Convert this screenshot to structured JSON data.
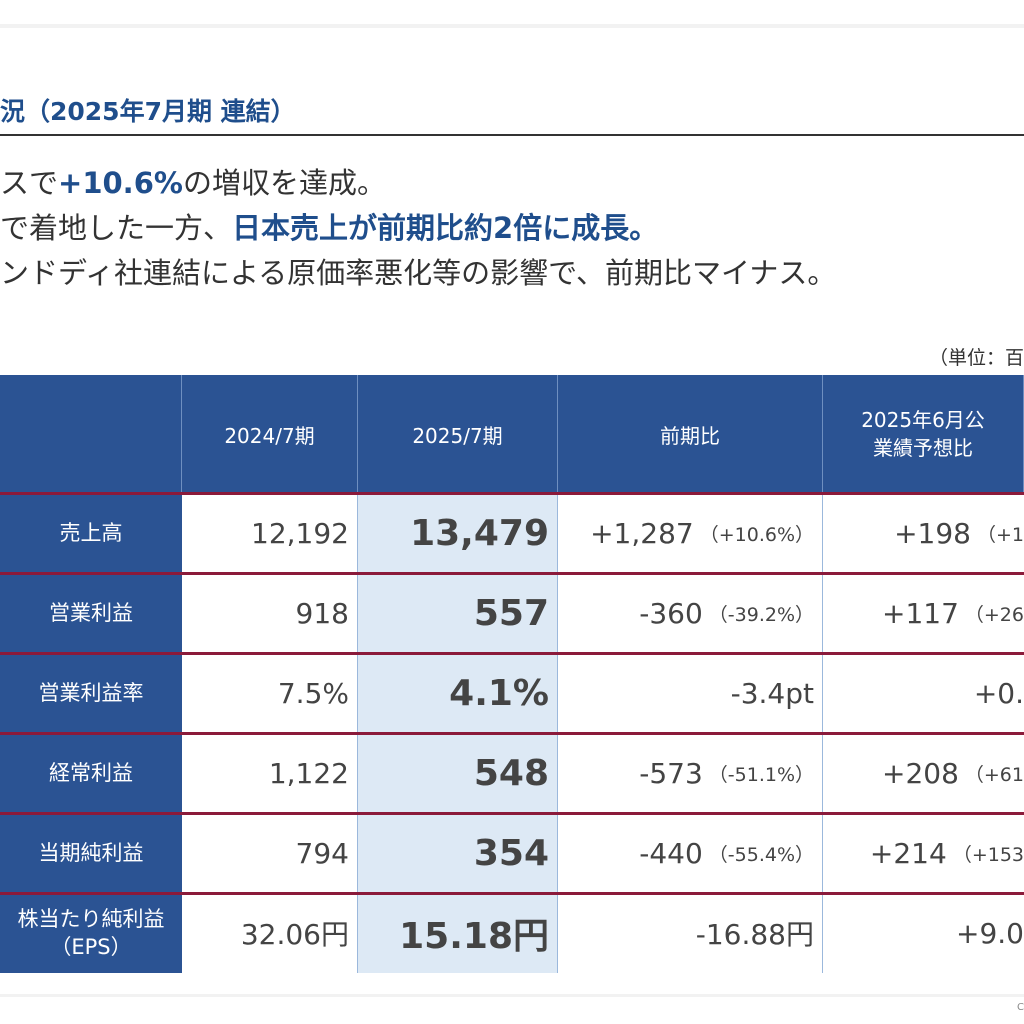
{
  "header": {
    "title": "況（2025年7月期 連結）"
  },
  "bullets": [
    [
      {
        "text": "スで"
      },
      {
        "text": "+10.6%",
        "em": true
      },
      {
        "text": "の増収を達成。"
      }
    ],
    [
      {
        "text": "で着地した一方、"
      },
      {
        "text": "日本売上が前期比約2倍に成長。",
        "em": true
      }
    ],
    [
      {
        "text": "ンドディ社連結による原価率悪化等の影響で、前期比マイナス。"
      }
    ]
  ],
  "unit": "（単位：百",
  "table": {
    "columns": [
      "2024/7期",
      "2025/7期",
      "前期比",
      [
        "2025年6月公",
        "業績予想比"
      ]
    ],
    "rows": [
      {
        "label": [
          "売上高"
        ],
        "prev": "12,192",
        "cur": "13,479",
        "yoy": "+1,287",
        "yoy_pct": "（+10.6%）",
        "fcst": "+198",
        "fcst_pct": "（+1"
      },
      {
        "label": [
          "営業利益"
        ],
        "prev": "918",
        "cur": "557",
        "yoy": "-360",
        "yoy_pct": "（-39.2%）",
        "fcst": "+117",
        "fcst_pct": "（+26"
      },
      {
        "label": [
          "営業利益率"
        ],
        "prev": "7.5%",
        "cur": "4.1%",
        "yoy": "-3.4pt",
        "fcst": "+0."
      },
      {
        "label": [
          "経常利益"
        ],
        "prev": "1,122",
        "cur": "548",
        "yoy": "-573",
        "yoy_pct": "（-51.1%）",
        "fcst": "+208",
        "fcst_pct": "（+61"
      },
      {
        "label": [
          "当期純利益"
        ],
        "prev": "794",
        "cur": "354",
        "yoy": "-440",
        "yoy_pct": "（-55.4%）",
        "fcst": "+214",
        "fcst_pct": "（+153"
      },
      {
        "label": [
          "株当たり純利益",
          "（EPS）"
        ],
        "prev": "32.06円",
        "cur": "15.18円",
        "yoy": "-16.88円",
        "fcst": "+9.0"
      }
    ]
  },
  "footer": "C"
}
